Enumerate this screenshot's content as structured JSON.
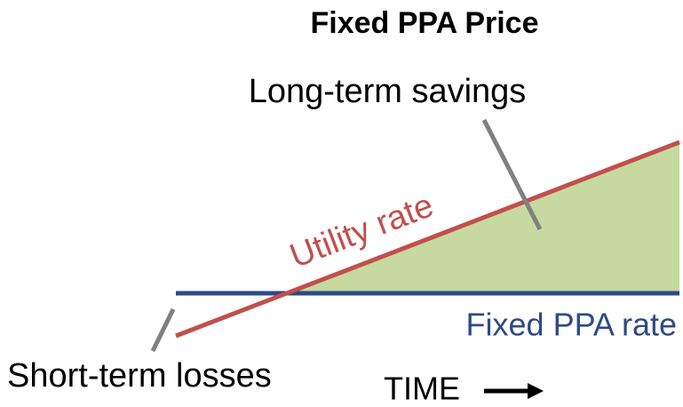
{
  "title": "Fixed PPA Price",
  "labels": {
    "savings": "Long-term savings",
    "utility": "Utility rate",
    "fixed": "Fixed PPA rate",
    "losses": "Short-term losses",
    "time": "TIME"
  }
}
